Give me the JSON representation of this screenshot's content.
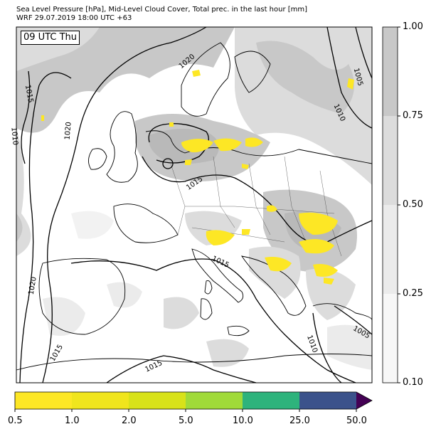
{
  "title": {
    "line1": "Sea Level Pressure [hPa], Mid-Level Cloud Cover, Total prec. in the last hour [mm]",
    "line2": "WRF 29.07.2019 18:00 UTC +63"
  },
  "time_badge": "09 UTC Thu",
  "cloud_colorbar": {
    "ticks": [
      "1.00",
      "0.75",
      "0.50",
      "0.25",
      "0.10"
    ],
    "colors": [
      "#c8c8c8",
      "#dcdcdc",
      "#ebebeb",
      "#f7f7f7"
    ]
  },
  "precip_colorbar": {
    "ticks": [
      "0.5",
      "1.0",
      "2.0",
      "5.0",
      "10.0",
      "25.0",
      "50.0"
    ],
    "colors": [
      "#fde725",
      "#f0e51d",
      "#d8e219",
      "#a0da39",
      "#2eb37c",
      "#3b528b",
      "#440154"
    ]
  },
  "isobar_labels": [
    {
      "text": "1020",
      "region": "north-sea"
    },
    {
      "text": "1015",
      "region": "west-atlantic"
    },
    {
      "text": "1010",
      "region": "far-west"
    },
    {
      "text": "1020",
      "region": "west-atlantic"
    },
    {
      "text": "1015",
      "region": "north-germany"
    },
    {
      "text": "1005",
      "region": "north-east"
    },
    {
      "text": "1010",
      "region": "north-east"
    },
    {
      "text": "1015",
      "region": "alps"
    },
    {
      "text": "1020",
      "region": "bay-of-biscay"
    },
    {
      "text": "1015",
      "region": "iberia-west"
    },
    {
      "text": "1015",
      "region": "mediterranean"
    },
    {
      "text": "1010",
      "region": "aegean"
    },
    {
      "text": "1005",
      "region": "turkey"
    }
  ]
}
